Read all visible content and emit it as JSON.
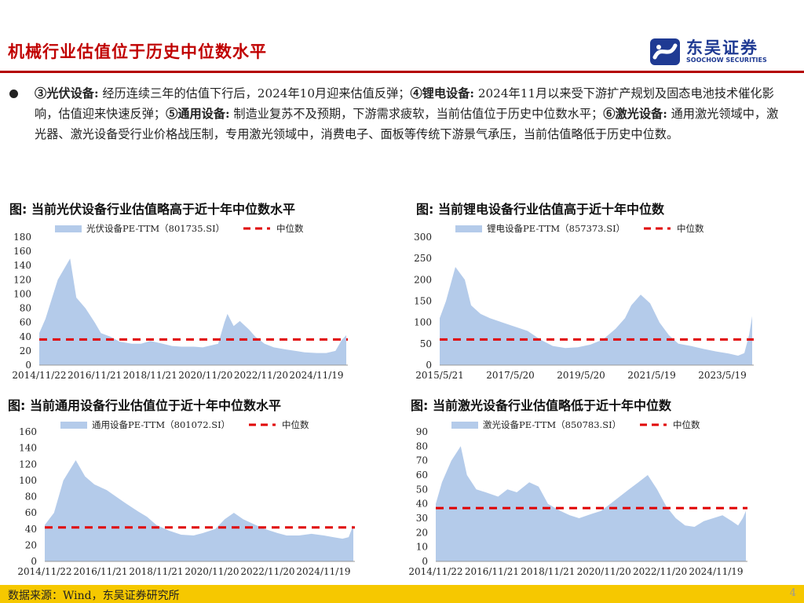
{
  "header": {
    "title": "机械行业估值位于历史中位数水平",
    "logo_name": "东吴证券",
    "logo_en": "SOOCHOW SECURITIES"
  },
  "body": {
    "segments": [
      {
        "t": "③光伏设备:",
        "b": true
      },
      {
        "t": " 经历连续三年的估值下行后，2024年10月迎来估值反弹；",
        "b": false
      },
      {
        "t": "④锂电设备:",
        "b": true
      },
      {
        "t": " 2024年11月以来受下游扩产规划及固态电池技术催化影响，估值迎来快速反弹；",
        "b": false
      },
      {
        "t": "⑤通用设备:",
        "b": true
      },
      {
        "t": " 制造业复苏不及预期，下游需求疲软，当前估值位于历史中位数水平；",
        "b": false
      },
      {
        "t": "⑥激光设备:",
        "b": true
      },
      {
        "t": " 通用激光领域中，激光器、激光设备受行业价格战压制，专用激光领域中，消费电子、面板等传统下游景气承压，当前估值略低于历史中位数。",
        "b": false
      }
    ]
  },
  "colors": {
    "area": "#b4cbea",
    "median": "#e00000",
    "title_red": "#c00000",
    "footer": "#f6c800"
  },
  "chart_titles": [
    "图: 当前光伏设备行业估值略高于近十年中位数水平",
    "图: 当前锂电设备行业估值高于近十年中位数",
    "图: 当前通用设备行业估值位于近十年中位数水平",
    "图: 当前激光设备行业估值略低于近十年中位数"
  ],
  "chart_data": [
    {
      "type": "area",
      "series": [
        {
          "name": "光伏设备PE-TTM（801735.SI）",
          "kind": "area"
        },
        {
          "name": "中位数",
          "kind": "median-line",
          "value": 36
        }
      ],
      "xlabels": [
        "2014/11/22",
        "2016/11/21",
        "2018/11/21",
        "2020/11/20",
        "2022/11/20",
        "2024/11/19"
      ],
      "yticks": [
        0,
        20,
        40,
        60,
        80,
        100,
        120,
        140,
        160,
        180
      ],
      "ylim": [
        0,
        180
      ],
      "x": [
        0,
        0.2,
        0.6,
        1.0,
        1.2,
        1.5,
        1.8,
        2.0,
        2.3,
        2.6,
        3.0,
        3.3,
        3.6,
        4.0,
        4.3,
        4.6,
        5.0,
        5.3,
        5.6,
        5.8,
        6.0,
        6.1,
        6.3,
        6.5,
        6.8,
        7.0,
        7.3,
        7.6,
        8.0,
        8.3,
        8.6,
        9.0,
        9.3,
        9.6,
        9.8,
        9.95
      ],
      "values": [
        45,
        65,
        120,
        150,
        95,
        80,
        60,
        45,
        40,
        33,
        30,
        30,
        34,
        30,
        27,
        26,
        26,
        25,
        28,
        30,
        60,
        72,
        55,
        62,
        50,
        40,
        30,
        25,
        22,
        20,
        18,
        17,
        17,
        20,
        35,
        42
      ]
    },
    {
      "type": "area",
      "series": [
        {
          "name": "锂电设备PE-TTM（857373.SI）",
          "kind": "area"
        },
        {
          "name": "中位数",
          "kind": "median-line",
          "value": 60
        }
      ],
      "xlabels": [
        "2015/5/21",
        "2017/5/20",
        "2019/5/20",
        "2021/5/19",
        "2023/5/19"
      ],
      "yticks": [
        0,
        50,
        100,
        150,
        200,
        250,
        300
      ],
      "ylim": [
        0,
        300
      ],
      "x": [
        0,
        0.2,
        0.5,
        0.8,
        1.0,
        1.3,
        1.6,
        2.0,
        2.4,
        2.8,
        3.2,
        3.6,
        4.0,
        4.4,
        4.8,
        5.2,
        5.6,
        5.9,
        6.1,
        6.4,
        6.7,
        7.0,
        7.3,
        7.6,
        8.0,
        8.4,
        8.8,
        9.2,
        9.5,
        9.7,
        9.85,
        9.95
      ],
      "values": [
        110,
        150,
        230,
        200,
        140,
        120,
        110,
        100,
        90,
        80,
        60,
        45,
        40,
        42,
        48,
        60,
        85,
        110,
        140,
        165,
        145,
        100,
        70,
        50,
        45,
        38,
        32,
        27,
        22,
        28,
        70,
        115
      ]
    },
    {
      "type": "area",
      "series": [
        {
          "name": "通用设备PE-TTM（801072.SI）",
          "kind": "area"
        },
        {
          "name": "中位数",
          "kind": "median-line",
          "value": 42
        }
      ],
      "xlabels": [
        "2014/11/22",
        "2016/11/21",
        "2018/11/21",
        "2020/11/20",
        "2022/11/20",
        "2024/11/19"
      ],
      "yticks": [
        0,
        20,
        40,
        60,
        80,
        100,
        120,
        140,
        160
      ],
      "ylim": [
        0,
        160
      ],
      "x": [
        0,
        0.3,
        0.6,
        1.0,
        1.3,
        1.6,
        2.0,
        2.3,
        2.6,
        3.0,
        3.3,
        3.6,
        4.0,
        4.4,
        4.8,
        5.1,
        5.5,
        5.8,
        6.1,
        6.4,
        6.8,
        7.1,
        7.5,
        7.8,
        8.2,
        8.6,
        9.0,
        9.3,
        9.6,
        9.8,
        9.95
      ],
      "values": [
        45,
        60,
        100,
        125,
        105,
        95,
        88,
        80,
        72,
        62,
        55,
        45,
        38,
        33,
        32,
        35,
        40,
        52,
        60,
        52,
        45,
        40,
        35,
        32,
        32,
        34,
        32,
        30,
        28,
        30,
        45
      ]
    },
    {
      "type": "area",
      "series": [
        {
          "name": "激光设备PE-TTM（850783.SI）",
          "kind": "area"
        },
        {
          "name": "中位数",
          "kind": "median-line",
          "value": 37
        }
      ],
      "xlabels": [
        "2014/11/22",
        "2016/11/21",
        "2018/11/21",
        "2020/11/20",
        "2022/11/20",
        "2024/11/19"
      ],
      "yticks": [
        0,
        10,
        20,
        30,
        40,
        50,
        60,
        70,
        80,
        90
      ],
      "ylim": [
        0,
        90
      ],
      "x": [
        0,
        0.2,
        0.5,
        0.8,
        1.0,
        1.3,
        1.6,
        2.0,
        2.3,
        2.6,
        3.0,
        3.3,
        3.6,
        4.0,
        4.3,
        4.6,
        5.0,
        5.3,
        5.6,
        5.9,
        6.2,
        6.5,
        6.8,
        7.1,
        7.4,
        7.7,
        8.0,
        8.3,
        8.6,
        8.9,
        9.2,
        9.5,
        9.7,
        9.85,
        9.95
      ],
      "values": [
        40,
        55,
        70,
        80,
        60,
        50,
        48,
        45,
        50,
        48,
        55,
        52,
        40,
        35,
        32,
        30,
        33,
        35,
        40,
        45,
        50,
        55,
        60,
        50,
        38,
        30,
        25,
        24,
        28,
        30,
        32,
        28,
        25,
        30,
        35
      ]
    }
  ],
  "footer": {
    "source": "数据来源：Wind，东吴证券研究所",
    "page": "4"
  }
}
